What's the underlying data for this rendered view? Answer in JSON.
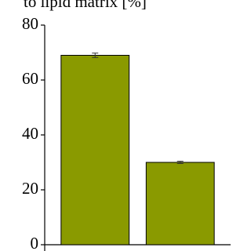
{
  "chart_data": {
    "type": "bar",
    "title": "to lipid matrix [%]",
    "categories": [
      null,
      null
    ],
    "values": [
      69,
      30
    ],
    "errors": [
      0.8,
      0.4
    ],
    "color": "#8a9a00",
    "ylim": [
      0,
      80
    ],
    "yticks": [
      0,
      20,
      40,
      60,
      80
    ],
    "grid": false
  }
}
